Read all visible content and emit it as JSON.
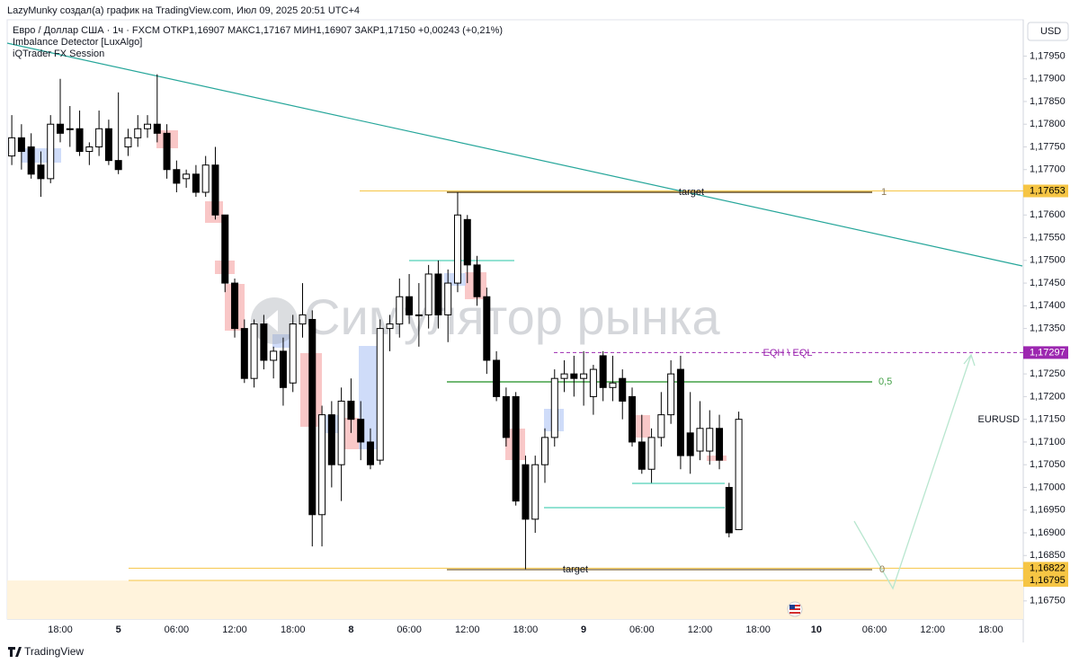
{
  "author_line": "LazyMunky создал(а) график на TradingView.com, Июл 09, 2025 20:51 UTC+4",
  "legend": {
    "symbol_line": "Евро / Доллар США · 1ч · FXCM  ОТКР1,16907  МАКС1,17167  МИН1,16907  ЗАКР1,17150  +0,00243 (+0,21%)",
    "indicators": [
      "Imbalance Detector [LuxAlgo]",
      "iQTrader FX Session"
    ]
  },
  "currency": "USD",
  "symbol_label": "EURUSD",
  "watermark": "Симулятор рынка",
  "footer": "TradingView",
  "annotations": {
    "target_upper": "target",
    "target_lower": "target",
    "fib_1": "1",
    "fib_half": "0,5",
    "fib_0": "0",
    "eq_level": "EQH \\ EQL"
  },
  "chart_data": {
    "type": "candlestick",
    "up_color": "#ffffff",
    "down_color": "#000000",
    "outline_color": "#000000",
    "categories": [
      null,
      null,
      null,
      null,
      null,
      "18:00",
      null,
      null,
      null,
      null,
      null,
      "5",
      null,
      null,
      null,
      null,
      null,
      "06:00",
      null,
      null,
      null,
      null,
      null,
      "12:00",
      null,
      null,
      null,
      null,
      null,
      "18:00",
      null,
      null,
      null,
      null,
      null,
      "8",
      null,
      null,
      null,
      null,
      null,
      "06:00",
      null,
      null,
      null,
      null,
      null,
      "12:00",
      null,
      null,
      null,
      null,
      null,
      "18:00",
      null,
      null,
      null,
      null,
      null,
      "9",
      null,
      null,
      null,
      null,
      null,
      "06:00",
      null,
      null,
      null,
      null,
      null,
      "12:00",
      null,
      null,
      null,
      null,
      null,
      "18:00",
      null,
      null,
      null,
      null,
      null,
      "10",
      null,
      null,
      null,
      null,
      null,
      "06:00",
      null,
      null,
      null,
      null,
      null,
      "12:00",
      null,
      null,
      null,
      null,
      null,
      "18:00",
      null,
      null,
      null
    ],
    "open": [
      1.1773,
      1.1777,
      1.1775,
      1.1771,
      1.1768,
      1.178,
      1.1779,
      1.1779,
      1.1774,
      1.1775,
      1.1779,
      1.1772,
      1.1775,
      1.1777,
      1.1779,
      1.178,
      1.1778,
      1.177,
      1.1768,
      1.1769,
      1.1765,
      1.1771,
      1.176,
      1.1745,
      1.1735,
      1.1724,
      1.1736,
      1.1728,
      1.173,
      1.1723,
      1.1736,
      1.1737,
      1.1694,
      1.1716,
      1.1705,
      1.1719,
      1.1715,
      1.171,
      1.1706,
      1.1735,
      1.1736,
      1.1742,
      1.1738,
      1.1738,
      1.1747,
      1.1738,
      1.1745,
      1.1759,
      1.1749,
      1.1742,
      1.1728,
      1.172,
      1.172,
      1.1705,
      1.1693,
      1.1705,
      1.1711,
      1.1724,
      1.1725,
      1.1724,
      1.172,
      1.1729,
      1.1722,
      1.1724,
      1.172,
      1.171,
      1.1704,
      1.1711,
      1.1716,
      1.1726,
      1.1712,
      1.1708,
      1.1708,
      1.1713,
      1.17,
      1.16907,
      null,
      null,
      null,
      null,
      null,
      null,
      null,
      null,
      null,
      null,
      null,
      null,
      null,
      null,
      null,
      null,
      null,
      null,
      null,
      null,
      null,
      null,
      null,
      null,
      null,
      null,
      null,
      null,
      null
    ],
    "high": [
      1.1782,
      1.178,
      1.1778,
      1.1774,
      1.1782,
      1.179,
      1.1784,
      1.1783,
      1.1776,
      1.1783,
      1.1781,
      1.1787,
      1.1779,
      1.1782,
      1.1782,
      1.1791,
      1.178,
      1.1772,
      1.177,
      1.1771,
      1.1773,
      1.1775,
      1.176,
      1.1746,
      1.1737,
      1.1737,
      1.1738,
      1.1731,
      1.1733,
      1.1738,
      1.1745,
      1.1739,
      1.1718,
      1.1719,
      1.1722,
      1.1724,
      1.1719,
      1.1713,
      1.1737,
      1.1738,
      1.1746,
      1.1747,
      1.1745,
      1.1749,
      1.175,
      1.1748,
      1.1765,
      1.176,
      1.1751,
      1.1744,
      1.173,
      1.1722,
      1.1721,
      1.1707,
      1.1707,
      1.1713,
      1.1726,
      1.1728,
      1.1729,
      1.173,
      1.1727,
      1.173,
      1.1729,
      1.1726,
      1.1722,
      1.1716,
      1.1713,
      1.1721,
      1.1728,
      1.1729,
      1.1721,
      1.1719,
      1.1717,
      1.1716,
      1.1701,
      1.17167,
      null,
      null,
      null,
      null,
      null,
      null,
      null,
      null,
      null,
      null,
      null,
      null,
      null,
      null,
      null,
      null,
      null,
      null,
      null,
      null,
      null,
      null,
      null,
      null,
      null,
      null,
      null,
      null,
      null
    ],
    "low": [
      1.1771,
      1.177,
      1.1768,
      1.1764,
      1.1767,
      1.1776,
      1.1775,
      1.1773,
      1.1771,
      1.1773,
      1.1771,
      1.1769,
      1.1773,
      1.1775,
      1.1777,
      1.1776,
      1.1768,
      1.1765,
      1.1766,
      1.1764,
      1.1764,
      1.1759,
      1.1743,
      1.1733,
      1.1723,
      1.1722,
      1.1726,
      1.1724,
      1.1718,
      1.1721,
      1.1733,
      1.1687,
      1.1687,
      1.17,
      1.1697,
      1.1712,
      1.1706,
      1.1704,
      1.1705,
      1.173,
      1.1733,
      1.1736,
      1.1731,
      1.1735,
      1.1735,
      1.1732,
      1.1743,
      1.1745,
      1.174,
      1.1725,
      1.1719,
      1.1709,
      1.1696,
      1.1682,
      1.169,
      1.1701,
      1.1709,
      1.1721,
      1.172,
      1.1718,
      1.1716,
      1.1719,
      1.1719,
      1.1715,
      1.1709,
      1.1703,
      1.1701,
      1.1709,
      1.1714,
      1.1704,
      1.1703,
      1.1706,
      1.1705,
      1.1704,
      1.1689,
      1.16907,
      null,
      null,
      null,
      null,
      null,
      null,
      null,
      null,
      null,
      null,
      null,
      null,
      null,
      null,
      null,
      null,
      null,
      null,
      null,
      null,
      null,
      null,
      null,
      null,
      null,
      null,
      null,
      null,
      null
    ],
    "close": [
      1.1777,
      1.1774,
      1.1769,
      1.1768,
      1.178,
      1.1778,
      1.1779,
      1.1774,
      1.1775,
      1.1779,
      1.1772,
      1.177,
      1.1777,
      1.1779,
      1.178,
      1.1778,
      1.177,
      1.1767,
      1.1769,
      1.1765,
      1.1771,
      1.176,
      1.1745,
      1.1735,
      1.1724,
      1.1736,
      1.1728,
      1.173,
      1.1722,
      1.1736,
      1.1738,
      1.1694,
      1.1716,
      1.1705,
      1.1719,
      1.1715,
      1.171,
      1.1705,
      1.1735,
      1.1736,
      1.1742,
      1.1738,
      1.1738,
      1.1747,
      1.1738,
      1.1745,
      1.176,
      1.1749,
      1.1742,
      1.1728,
      1.172,
      1.1711,
      1.1697,
      1.1693,
      1.1705,
      1.1711,
      1.1724,
      1.1725,
      1.1724,
      1.1725,
      1.1726,
      1.1722,
      1.1723,
      1.1719,
      1.171,
      1.1704,
      1.1711,
      1.1716,
      1.1725,
      1.1707,
      1.1707,
      1.1713,
      1.1713,
      1.1706,
      1.169,
      1.1715,
      null,
      null,
      null,
      null,
      null,
      null,
      null,
      null,
      null,
      null,
      null,
      null,
      null,
      null,
      null,
      null,
      null,
      null,
      null,
      null,
      null,
      null,
      null,
      null,
      null,
      null,
      null,
      null,
      null
    ],
    "ylim": [
      1.1671,
      1.1803
    ],
    "yticks": [
      {
        "value": 1.1795,
        "label": "1,17950"
      },
      {
        "value": 1.179,
        "label": "1,17900"
      },
      {
        "value": 1.1785,
        "label": "1,17850"
      },
      {
        "value": 1.178,
        "label": "1,17800"
      },
      {
        "value": 1.1775,
        "label": "1,17750"
      },
      {
        "value": 1.177,
        "label": "1,17700"
      },
      {
        "value": 1.176,
        "label": "1,17600"
      },
      {
        "value": 1.1755,
        "label": "1,17550"
      },
      {
        "value": 1.175,
        "label": "1,17500"
      },
      {
        "value": 1.1745,
        "label": "1,17450"
      },
      {
        "value": 1.174,
        "label": "1,17400"
      },
      {
        "value": 1.1735,
        "label": "1,17350"
      },
      {
        "value": 1.1725,
        "label": "1,17250"
      },
      {
        "value": 1.172,
        "label": "1,17200"
      },
      {
        "value": 1.1715,
        "label": "1,17150"
      },
      {
        "value": 1.171,
        "label": "1,17100"
      },
      {
        "value": 1.1705,
        "label": "1,17050"
      },
      {
        "value": 1.17,
        "label": "1,17000"
      },
      {
        "value": 1.1695,
        "label": "1,16950"
      },
      {
        "value": 1.169,
        "label": "1,16900"
      },
      {
        "value": 1.1685,
        "label": "1,16850"
      },
      {
        "value": 1.1675,
        "label": "1,16750"
      }
    ],
    "levels": [
      {
        "value": 1.17653,
        "label": "1,17653",
        "color": "#f6c544",
        "text_color": "#000000"
      },
      {
        "value": 1.17297,
        "label": "1,17297",
        "color": "#9c27b0",
        "text_color": "#ffffff",
        "dashed": true
      },
      {
        "value": 1.16822,
        "label": "1,16822",
        "color": "#f6c544",
        "text_color": "#000000"
      },
      {
        "value": 1.16795,
        "label": "1,16795",
        "color": "#f6c544",
        "text_color": "#000000",
        "zone_below": true
      }
    ],
    "grid": false
  }
}
